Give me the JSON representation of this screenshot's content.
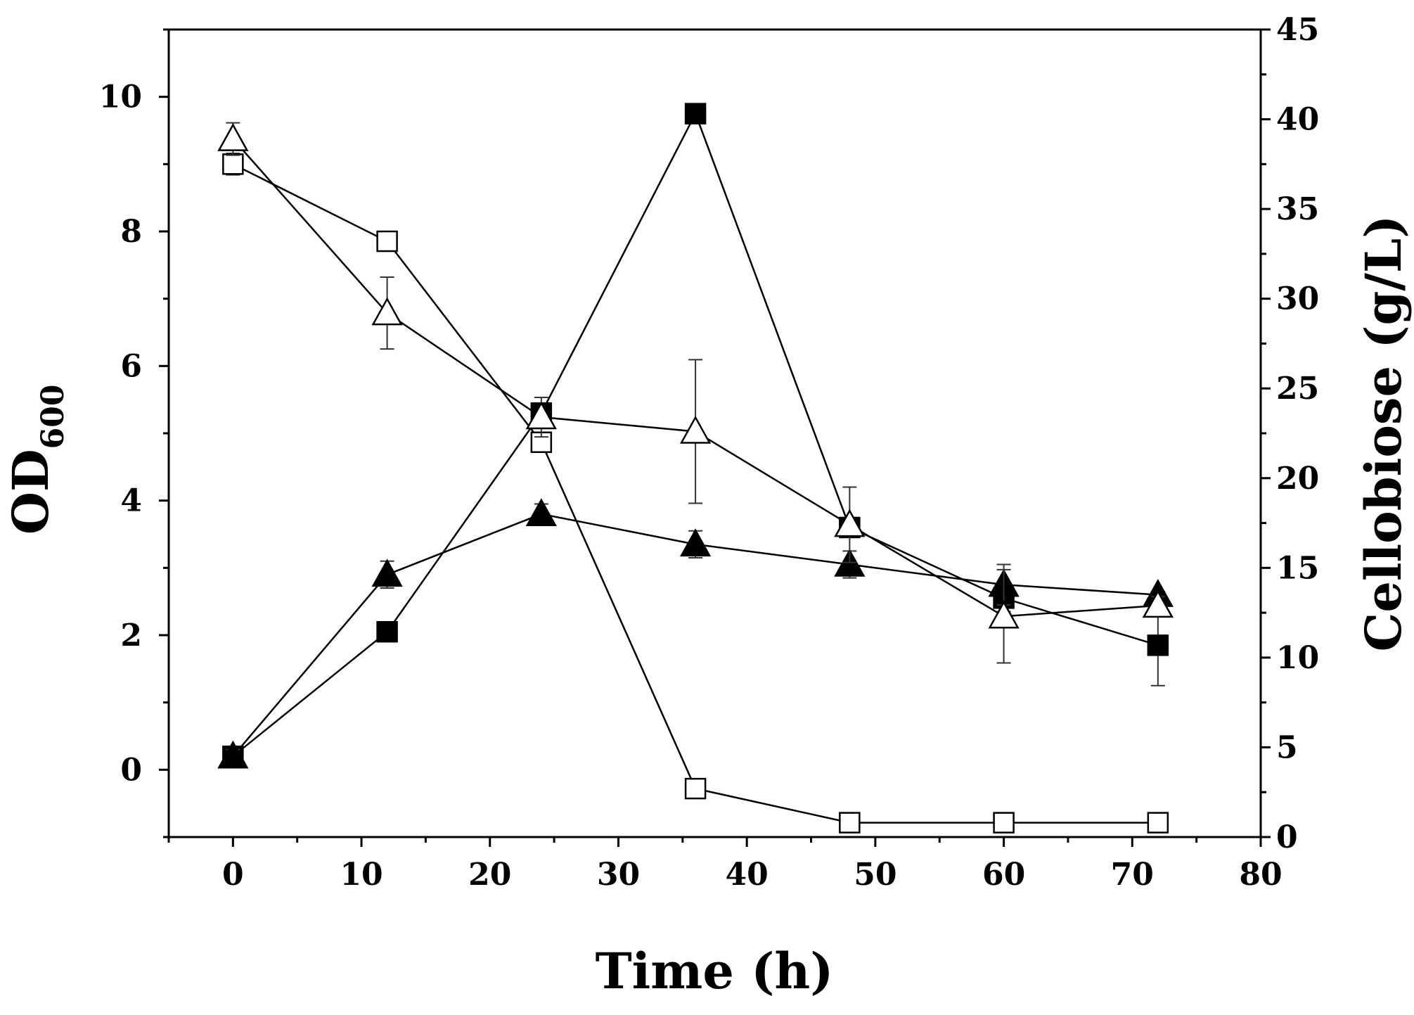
{
  "chart_data": {
    "type": "line",
    "title": "",
    "xlabel": "Time (h)",
    "ylabel_left": {
      "main": "OD",
      "sub": "600"
    },
    "ylabel_right": "Cellobiose (g/L)",
    "xlim": [
      -5,
      80
    ],
    "ylim_left": [
      -1,
      11
    ],
    "ylim_right": [
      0,
      45
    ],
    "x_ticks": [
      0,
      10,
      20,
      30,
      40,
      50,
      60,
      70,
      80
    ],
    "y_left_ticks": [
      0,
      2,
      4,
      6,
      8,
      10
    ],
    "y_right_ticks": [
      0,
      5,
      10,
      15,
      20,
      25,
      30,
      35,
      40,
      45
    ],
    "grid": false,
    "x": [
      0,
      12,
      24,
      36,
      48,
      60,
      72
    ],
    "series": [
      {
        "name": "OD600 (filled square)",
        "axis": "left",
        "marker": "square",
        "filled": true,
        "values": [
          0.2,
          2.05,
          5.3,
          9.75,
          3.6,
          2.55,
          1.85
        ],
        "errors": [
          0.1,
          0.05,
          0.15,
          0.1,
          0.1,
          0.2,
          0.6
        ]
      },
      {
        "name": "OD600 (filled triangle)",
        "axis": "left",
        "marker": "triangle",
        "filled": true,
        "values": [
          0.2,
          2.9,
          3.8,
          3.35,
          3.05,
          2.75,
          2.6
        ],
        "errors": [
          0.1,
          0.2,
          0.15,
          0.2,
          0.2,
          0.3,
          0.05
        ]
      },
      {
        "name": "Cellobiose (open square)",
        "axis": "right",
        "marker": "square",
        "filled": false,
        "values": [
          37.5,
          33.2,
          22.0,
          2.7,
          0.8,
          0.8,
          0.8
        ],
        "errors": [
          0.6,
          0.4,
          0.4,
          0.3,
          0.2,
          0.2,
          0.2
        ]
      },
      {
        "name": "Cellobiose (open triangle)",
        "axis": "right",
        "marker": "triangle",
        "filled": false,
        "values": [
          38.9,
          29.2,
          23.4,
          22.6,
          17.4,
          12.3,
          12.9
        ],
        "errors": [
          0.9,
          2.0,
          1.1,
          4.0,
          2.1,
          2.6,
          0.5
        ]
      }
    ]
  }
}
